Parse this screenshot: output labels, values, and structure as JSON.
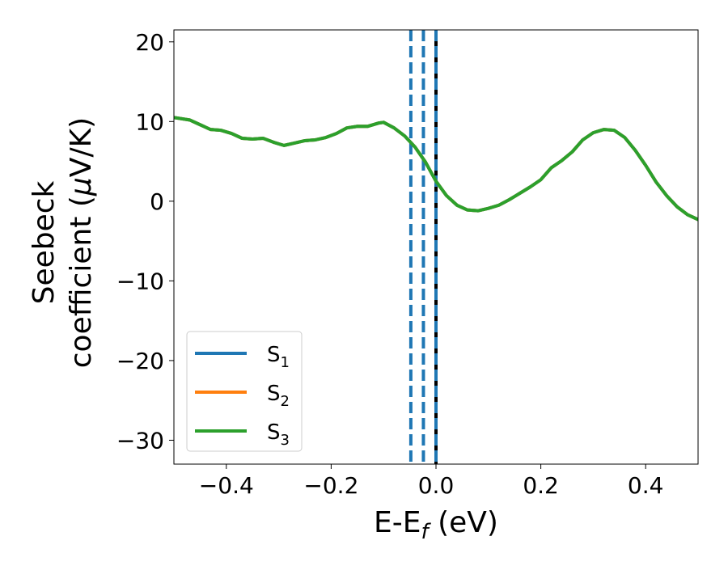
{
  "chart_data": {
    "type": "line",
    "xlabel": {
      "main": "E-E",
      "sub": "f",
      "suffix": " (eV)"
    },
    "ylabel": {
      "line1": "Seebeck",
      "line2a": "coefficient  (",
      "mu": "μ",
      "line2b": "V/K)"
    },
    "xlim": [
      -0.5,
      0.5
    ],
    "ylim": [
      -33,
      21.5
    ],
    "xticks": [
      -0.4,
      -0.2,
      0.0,
      0.2,
      0.4
    ],
    "xtick_labels": [
      "−0.4",
      "−0.2",
      "0.0",
      "0.2",
      "0.4"
    ],
    "yticks": [
      -30,
      -20,
      -10,
      0,
      10,
      20
    ],
    "ytick_labels": [
      "−30",
      "−20",
      "−10",
      "0",
      "10",
      "20"
    ],
    "grid": false,
    "legend_position": "lower-left",
    "series": [
      {
        "name": "S",
        "sub": "1",
        "color": "#1f77b4",
        "x": [
          -0.5,
          -0.47,
          -0.45,
          -0.43,
          -0.41,
          -0.39,
          -0.37,
          -0.35,
          -0.33,
          -0.31,
          -0.29,
          -0.27,
          -0.25,
          -0.23,
          -0.21,
          -0.19,
          -0.17,
          -0.15,
          -0.13,
          -0.11,
          -0.1,
          -0.08,
          -0.06,
          -0.04,
          -0.02,
          0.0,
          0.02,
          0.04,
          0.06,
          0.08,
          0.1,
          0.12,
          0.14,
          0.16,
          0.18,
          0.2,
          0.22,
          0.24,
          0.26,
          0.28,
          0.3,
          0.32,
          0.34,
          0.36,
          0.38,
          0.4,
          0.42,
          0.44,
          0.46,
          0.48,
          0.5
        ],
        "y": [
          10.5,
          10.2,
          9.6,
          9.0,
          8.9,
          8.5,
          7.9,
          7.8,
          7.9,
          7.4,
          7.0,
          7.3,
          7.6,
          7.7,
          8.0,
          8.5,
          9.2,
          9.4,
          9.4,
          9.8,
          9.9,
          9.2,
          8.2,
          6.8,
          4.9,
          2.5,
          0.7,
          -0.5,
          -1.1,
          -1.2,
          -0.9,
          -0.5,
          0.2,
          1.0,
          1.8,
          2.7,
          4.2,
          5.1,
          6.2,
          7.7,
          8.6,
          9.0,
          8.9,
          8.0,
          6.4,
          4.5,
          2.4,
          0.7,
          -0.7,
          -1.7,
          -2.3
        ]
      },
      {
        "name": "S",
        "sub": "2",
        "color": "#ff7f0e",
        "x": [
          -0.5,
          -0.47,
          -0.45,
          -0.43,
          -0.41,
          -0.39,
          -0.37,
          -0.35,
          -0.33,
          -0.31,
          -0.29,
          -0.27,
          -0.25,
          -0.23,
          -0.21,
          -0.19,
          -0.17,
          -0.15,
          -0.13,
          -0.11,
          -0.1,
          -0.08,
          -0.06,
          -0.04,
          -0.02,
          0.0,
          0.02,
          0.04,
          0.06,
          0.08,
          0.1,
          0.12,
          0.14,
          0.16,
          0.18,
          0.2,
          0.22,
          0.24,
          0.26,
          0.28,
          0.3,
          0.32,
          0.34,
          0.36,
          0.38,
          0.4,
          0.42,
          0.44,
          0.46,
          0.48,
          0.5
        ],
        "y": [
          10.5,
          10.2,
          9.6,
          9.0,
          8.9,
          8.5,
          7.9,
          7.8,
          7.9,
          7.4,
          7.0,
          7.3,
          7.6,
          7.7,
          8.0,
          8.5,
          9.2,
          9.4,
          9.4,
          9.8,
          9.9,
          9.2,
          8.2,
          6.8,
          4.9,
          2.5,
          0.7,
          -0.5,
          -1.1,
          -1.2,
          -0.9,
          -0.5,
          0.2,
          1.0,
          1.8,
          2.7,
          4.2,
          5.1,
          6.2,
          7.7,
          8.6,
          9.0,
          8.9,
          8.0,
          6.4,
          4.5,
          2.4,
          0.7,
          -0.7,
          -1.7,
          -2.3
        ]
      },
      {
        "name": "S",
        "sub": "3",
        "color": "#2ca02c",
        "x": [
          -0.5,
          -0.47,
          -0.45,
          -0.43,
          -0.41,
          -0.39,
          -0.37,
          -0.35,
          -0.33,
          -0.31,
          -0.29,
          -0.27,
          -0.25,
          -0.23,
          -0.21,
          -0.19,
          -0.17,
          -0.15,
          -0.13,
          -0.11,
          -0.1,
          -0.08,
          -0.06,
          -0.04,
          -0.02,
          0.0,
          0.02,
          0.04,
          0.06,
          0.08,
          0.1,
          0.12,
          0.14,
          0.16,
          0.18,
          0.2,
          0.22,
          0.24,
          0.26,
          0.28,
          0.3,
          0.32,
          0.34,
          0.36,
          0.38,
          0.4,
          0.42,
          0.44,
          0.46,
          0.48,
          0.5
        ],
        "y": [
          10.5,
          10.2,
          9.6,
          9.0,
          8.9,
          8.5,
          7.9,
          7.8,
          7.9,
          7.4,
          7.0,
          7.3,
          7.6,
          7.7,
          8.0,
          8.5,
          9.2,
          9.4,
          9.4,
          9.8,
          9.9,
          9.2,
          8.2,
          6.8,
          4.9,
          2.5,
          0.7,
          -0.5,
          -1.1,
          -1.2,
          -0.9,
          -0.5,
          0.2,
          1.0,
          1.8,
          2.7,
          4.2,
          5.1,
          6.2,
          7.7,
          8.6,
          9.0,
          8.9,
          8.0,
          6.4,
          4.5,
          2.4,
          0.7,
          -0.7,
          -1.7,
          -2.3
        ]
      }
    ],
    "vertical_lines": [
      {
        "x": -0.048,
        "color": "#1f77b4",
        "style": "dashed"
      },
      {
        "x": -0.024,
        "color": "#1f77b4",
        "style": "dashed"
      },
      {
        "x": 0.0,
        "color": "#000000",
        "style": "solid"
      },
      {
        "x": 0.0,
        "color": "#1f77b4",
        "style": "dashed"
      }
    ]
  }
}
